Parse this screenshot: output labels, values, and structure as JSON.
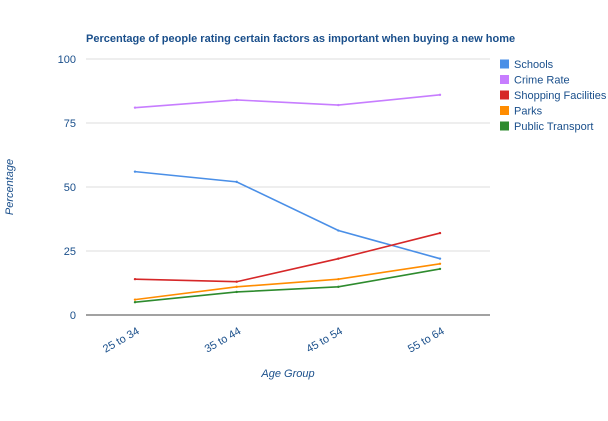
{
  "chart_data": {
    "type": "line",
    "title": "Percentage of people rating certain factors as important when buying a new home",
    "xlabel": "Age Group",
    "ylabel": "Percentage",
    "categories": [
      "25 to 34",
      "35 to 44",
      "45 to 54",
      "55 to 64"
    ],
    "ylim": [
      0,
      100
    ],
    "yticks": [
      0,
      25,
      50,
      75,
      100
    ],
    "grid": true,
    "legend_position": "right",
    "series": [
      {
        "name": "Schools",
        "color": "#4a8fe7",
        "values": [
          56,
          52,
          33,
          22
        ]
      },
      {
        "name": "Crime Rate",
        "color": "#c77dff",
        "values": [
          81,
          84,
          82,
          86
        ]
      },
      {
        "name": "Shopping Facilities",
        "color": "#d62728",
        "values": [
          14,
          13,
          22,
          32
        ]
      },
      {
        "name": "Parks",
        "color": "#ff8c00",
        "values": [
          6,
          11,
          14,
          20
        ]
      },
      {
        "name": "Public Transport",
        "color": "#2e8b2e",
        "values": [
          5,
          9,
          11,
          18
        ]
      }
    ]
  }
}
